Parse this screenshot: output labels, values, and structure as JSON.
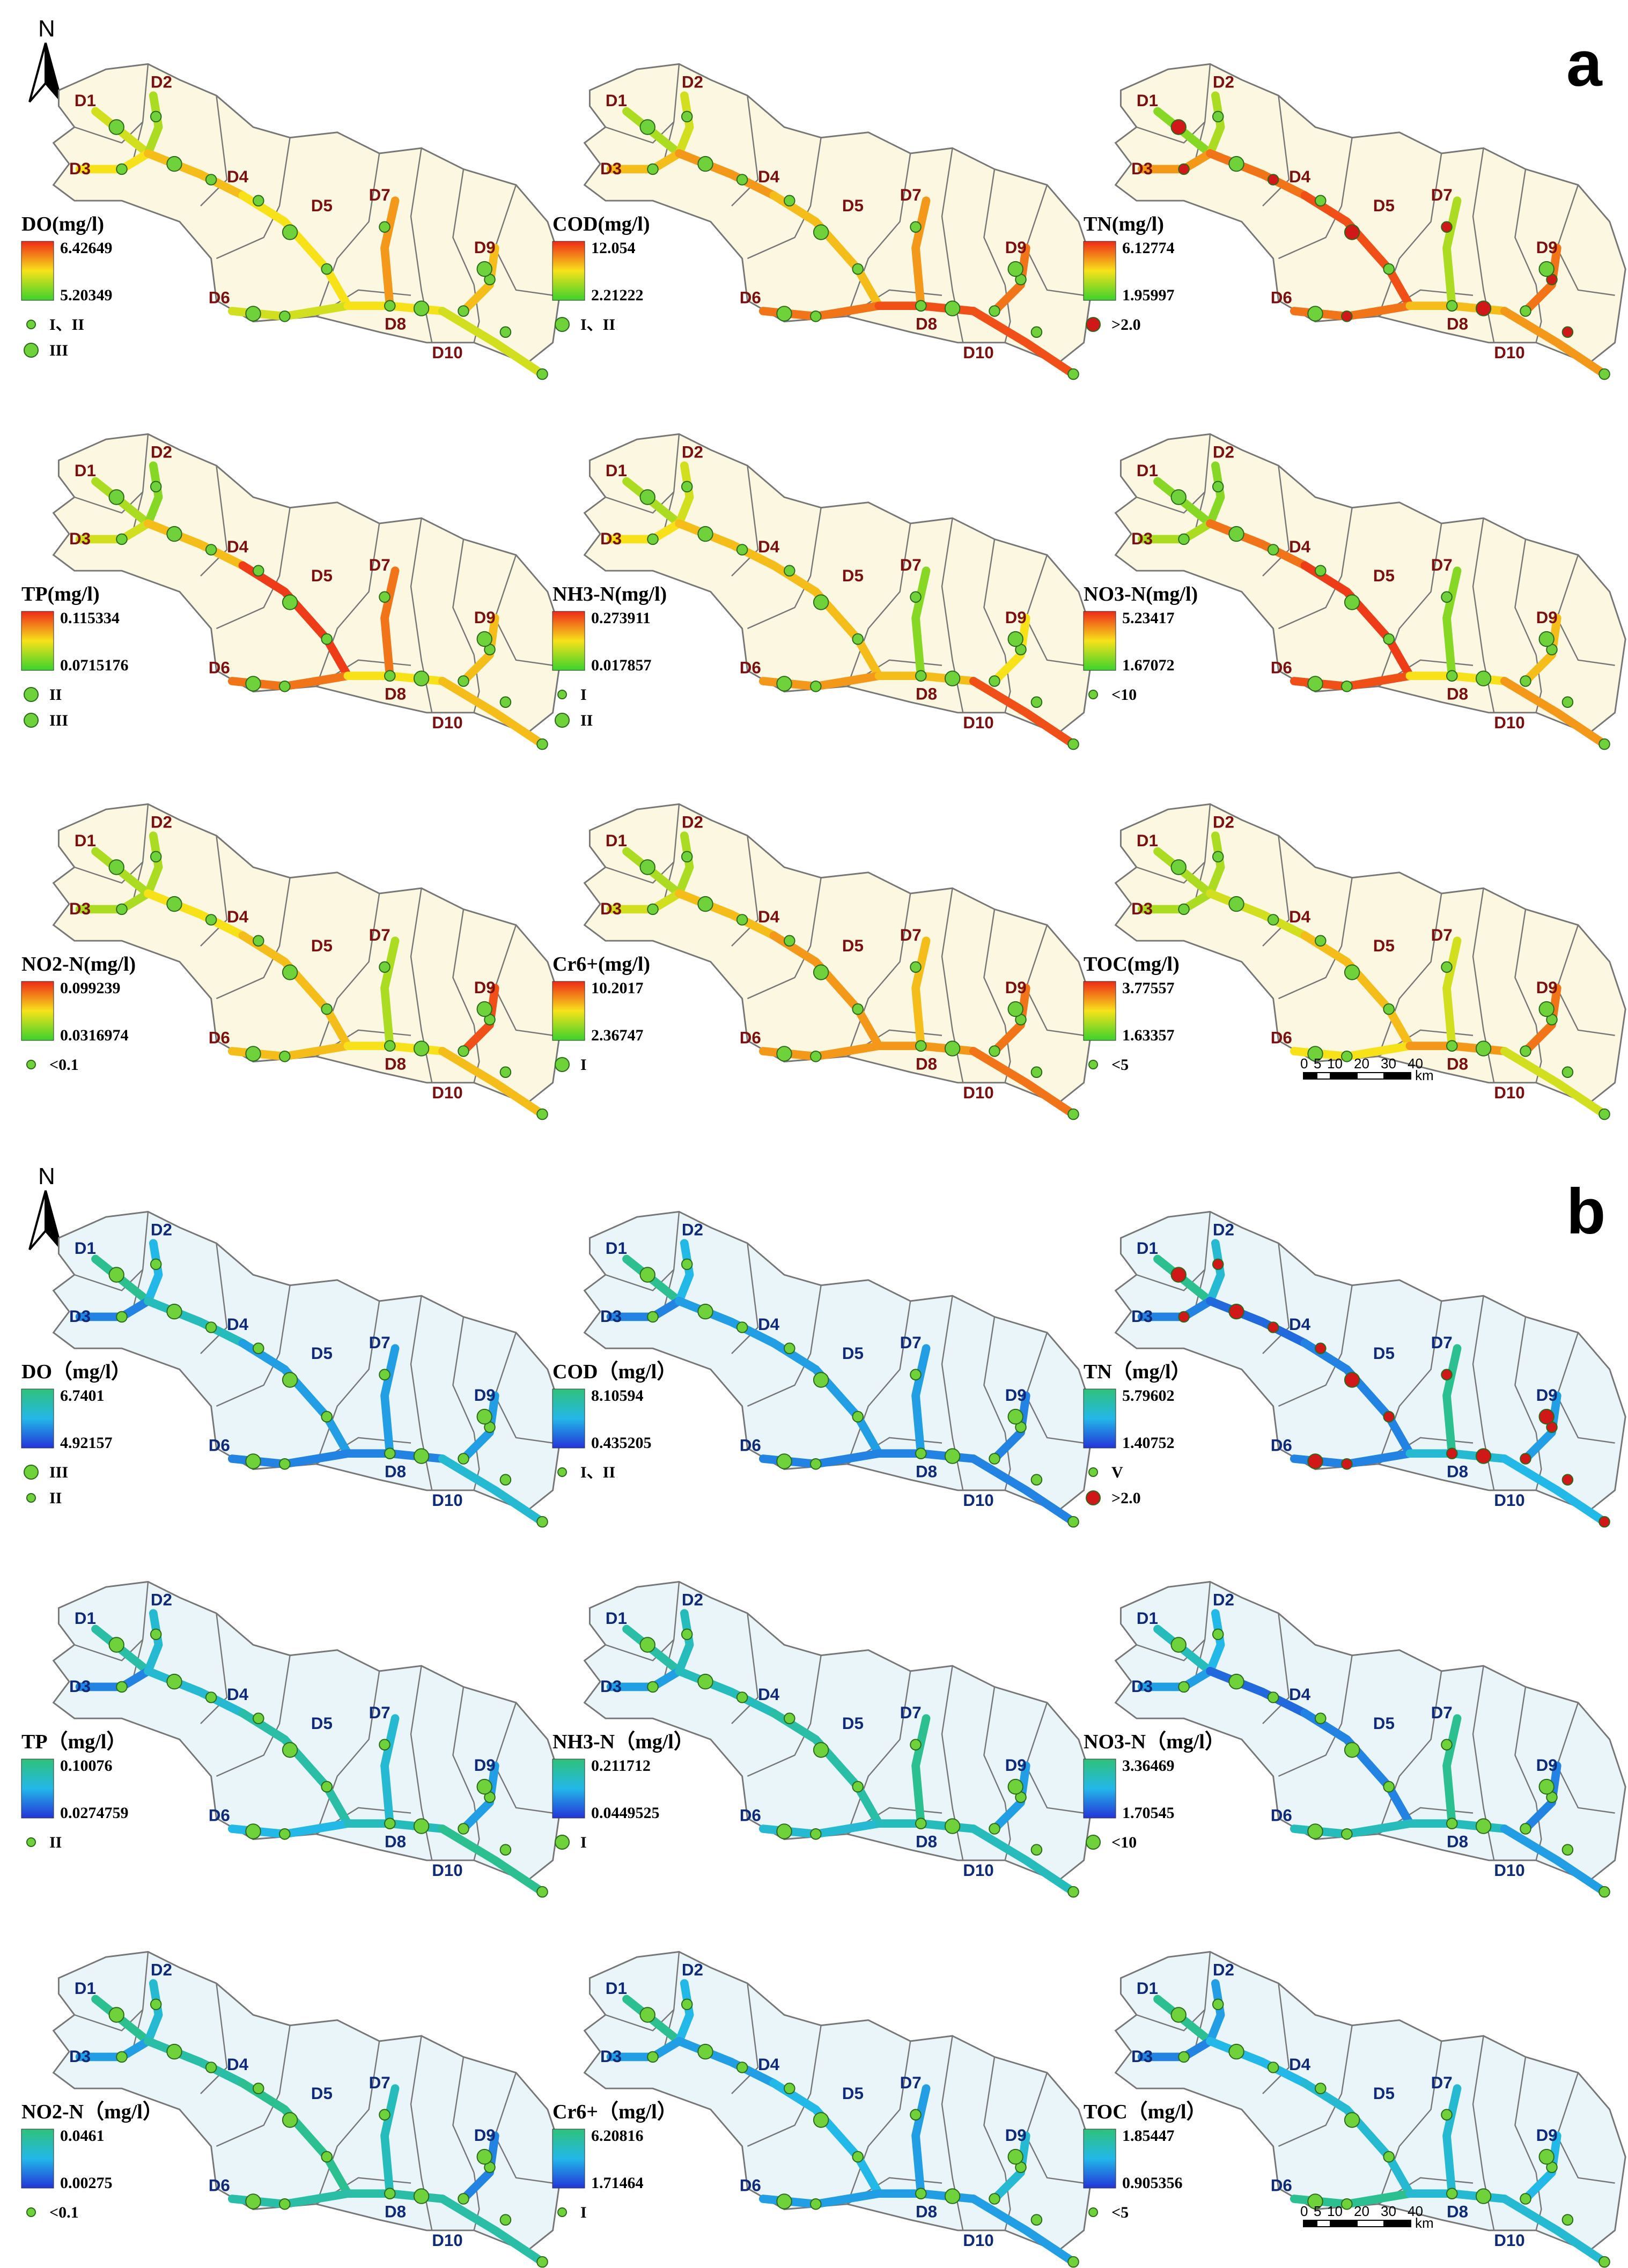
{
  "figure": {
    "colors": {
      "panel_a_bg": "#fbf7e0",
      "panel_b_bg": "#eaf5fa",
      "border": "#777777",
      "label_a": "#7a1010",
      "label_b": "#0e2a78",
      "marker_green": "#6fd23a",
      "marker_red": "#d01818"
    },
    "sites": [
      "D1",
      "D2",
      "D3",
      "D4",
      "D5",
      "D6",
      "D7",
      "D8",
      "D9",
      "D10"
    ],
    "north_label": "N",
    "scale_bar": {
      "ticks": [
        "0",
        "5",
        "10",
        "20",
        "30",
        "40"
      ],
      "unit": "km"
    },
    "panels": [
      {
        "letter": "a",
        "ramp": "warm",
        "maps": [
          {
            "title": "DO(mg/l)",
            "max": "6.42649",
            "min": "5.20349",
            "classes": [
              {
                "label": "I、II",
                "marker": "small-green"
              },
              {
                "label": "III",
                "marker": "green"
              }
            ],
            "river_profile": [
              0.4,
              0.3,
              0.5,
              0.6,
              0.5,
              0.4,
              0.7,
              0.5,
              0.6,
              0.4
            ]
          },
          {
            "title": "COD(mg/l)",
            "max": "12.054",
            "min": "2.21222",
            "classes": [
              {
                "label": "I、II",
                "marker": "green"
              }
            ],
            "river_profile": [
              0.3,
              0.4,
              0.6,
              0.7,
              0.6,
              0.8,
              0.7,
              0.9,
              0.8,
              0.9
            ]
          },
          {
            "title": "TN(mg/l)",
            "max": "6.12774",
            "min": "1.95997",
            "classes": [
              {
                "label": ">2.0",
                "marker": "red"
              }
            ],
            "river_profile": [
              0.2,
              0.3,
              0.7,
              0.8,
              0.9,
              0.8,
              0.3,
              0.6,
              0.8,
              0.7
            ]
          },
          {
            "title": "TP(mg/l)",
            "max": "0.115334",
            "min": "0.0715176",
            "classes": [
              {
                "label": "II",
                "marker": "green"
              },
              {
                "label": "III",
                "marker": "green"
              }
            ],
            "river_profile": [
              0.3,
              0.2,
              0.4,
              0.6,
              0.95,
              0.8,
              0.8,
              0.5,
              0.6,
              0.6
            ]
          },
          {
            "title": "NH3-N(mg/l)",
            "max": "0.273911",
            "min": "0.017857",
            "classes": [
              {
                "label": "I",
                "marker": "small-green"
              },
              {
                "label": "II",
                "marker": "green"
              }
            ],
            "river_profile": [
              0.3,
              0.4,
              0.5,
              0.6,
              0.6,
              0.7,
              0.2,
              0.6,
              0.5,
              0.9
            ]
          },
          {
            "title": "NO3-N(mg/l)",
            "max": "5.23417",
            "min": "1.67072",
            "classes": [
              {
                "label": "<10",
                "marker": "small-green"
              }
            ],
            "river_profile": [
              0.2,
              0.2,
              0.3,
              0.8,
              0.95,
              0.9,
              0.2,
              0.5,
              0.6,
              0.7
            ]
          },
          {
            "title": "NO2-N(mg/l)",
            "max": "0.099239",
            "min": "0.0316974",
            "classes": [
              {
                "label": "<0.1",
                "marker": "small-green"
              }
            ],
            "river_profile": [
              0.3,
              0.3,
              0.3,
              0.5,
              0.6,
              0.6,
              0.3,
              0.5,
              0.9,
              0.6
            ]
          },
          {
            "title": "Cr6+(mg/l)",
            "max": "10.2017",
            "min": "2.36747",
            "classes": [
              {
                "label": "I",
                "marker": "green"
              }
            ],
            "river_profile": [
              0.3,
              0.3,
              0.4,
              0.6,
              0.7,
              0.7,
              0.6,
              0.7,
              0.8,
              0.8
            ]
          },
          {
            "title": "TOC(mg/l)",
            "max": "3.77557",
            "min": "1.63357",
            "classes": [
              {
                "label": "<5",
                "marker": "small-green"
              }
            ],
            "river_profile": [
              0.3,
              0.3,
              0.3,
              0.4,
              0.6,
              0.5,
              0.4,
              0.7,
              0.8,
              0.4
            ]
          }
        ]
      },
      {
        "letter": "b",
        "ramp": "cool",
        "maps": [
          {
            "title": "DO（mg/l）",
            "max": "6.7401",
            "min": "4.92157",
            "classes": [
              {
                "label": "III",
                "marker": "green"
              },
              {
                "label": "II",
                "marker": "small-green"
              }
            ],
            "river_profile": [
              0.9,
              0.5,
              0.3,
              0.7,
              0.4,
              0.3,
              0.4,
              0.3,
              0.4,
              0.6
            ]
          },
          {
            "title": "COD（mg/l）",
            "max": "8.10594",
            "min": "0.435205",
            "classes": [
              {
                "label": "I、II",
                "marker": "small-green"
              }
            ],
            "river_profile": [
              0.9,
              0.5,
              0.3,
              0.4,
              0.4,
              0.3,
              0.4,
              0.3,
              0.3,
              0.3
            ]
          },
          {
            "title": "TN（mg/l）",
            "max": "5.79602",
            "min": "1.40752",
            "classes": [
              {
                "label": "V",
                "marker": "small-green"
              },
              {
                "label": ">2.0",
                "marker": "red"
              }
            ],
            "river_profile": [
              0.9,
              0.6,
              0.3,
              0.2,
              0.3,
              0.3,
              0.9,
              0.6,
              0.4,
              0.5
            ]
          },
          {
            "title": "TP（mg/l）",
            "max": "0.10076",
            "min": "0.0274759",
            "classes": [
              {
                "label": "II",
                "marker": "small-green"
              }
            ],
            "river_profile": [
              0.8,
              0.6,
              0.3,
              0.6,
              0.8,
              0.5,
              0.6,
              0.7,
              0.4,
              0.9
            ]
          },
          {
            "title": "NH3-N（mg/l）",
            "max": "0.211712",
            "min": "0.0449525",
            "classes": [
              {
                "label": "I",
                "marker": "green"
              }
            ],
            "river_profile": [
              0.8,
              0.7,
              0.4,
              0.7,
              0.8,
              0.6,
              0.9,
              0.7,
              0.4,
              0.7
            ]
          },
          {
            "title": "NO3-N（mg/l）",
            "max": "3.36469",
            "min": "1.70545",
            "classes": [
              {
                "label": "<10",
                "marker": "green"
              }
            ],
            "river_profile": [
              0.7,
              0.5,
              0.4,
              0.2,
              0.3,
              0.7,
              0.9,
              0.7,
              0.3,
              0.4
            ]
          },
          {
            "title": "NO2-N（mg/l）",
            "max": "0.0461",
            "min": "0.00275",
            "classes": [
              {
                "label": "<0.1",
                "marker": "small-green"
              }
            ],
            "river_profile": [
              0.9,
              0.6,
              0.4,
              0.8,
              0.9,
              0.8,
              0.7,
              0.8,
              0.3,
              0.8
            ]
          },
          {
            "title": "Cr6+（mg/l）",
            "max": "6.20816",
            "min": "1.71464",
            "classes": [
              {
                "label": "I",
                "marker": "small-green"
              }
            ],
            "river_profile": [
              0.9,
              0.5,
              0.4,
              0.4,
              0.5,
              0.4,
              0.4,
              0.4,
              0.6,
              0.4
            ]
          },
          {
            "title": "TOC（mg/l）",
            "max": "1.85447",
            "min": "0.905356",
            "classes": [
              {
                "label": "<5",
                "marker": "small-green"
              }
            ],
            "river_profile": [
              0.9,
              0.4,
              0.3,
              0.5,
              0.6,
              0.9,
              0.6,
              0.6,
              0.5,
              0.6
            ]
          }
        ]
      }
    ]
  }
}
